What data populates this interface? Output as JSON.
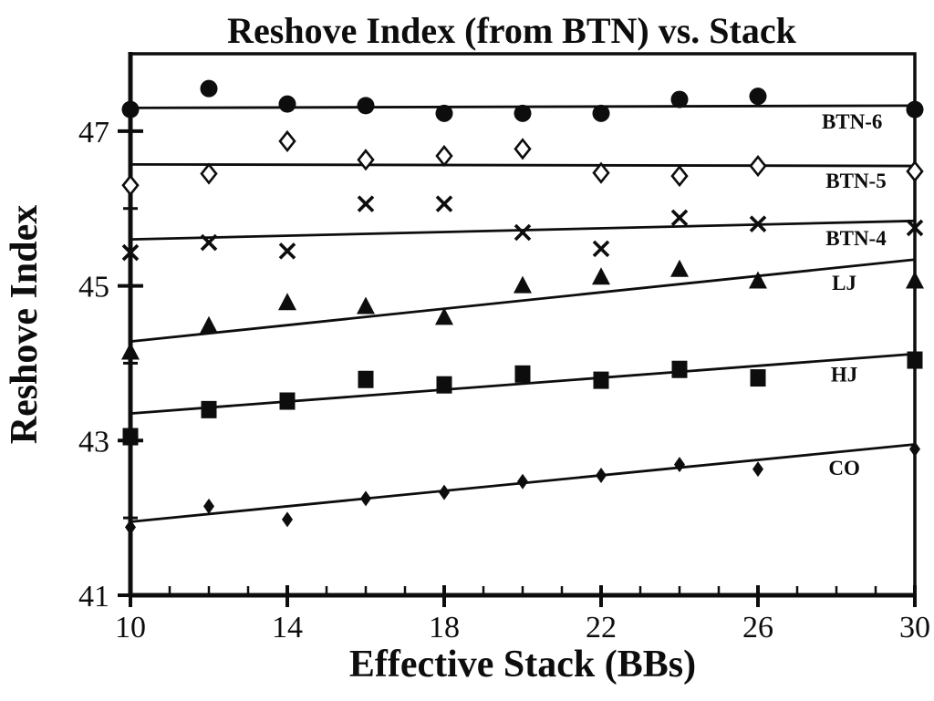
{
  "page": {
    "background_color": "#ffffff",
    "ink_color": "#0d0d0d"
  },
  "chart_data": {
    "type": "scatter",
    "title": "Reshove Index (from BTN) vs. Stack",
    "xlabel": "Effective Stack (BBs)",
    "ylabel": "Reshove Index",
    "xlim": [
      10,
      30
    ],
    "ylim": [
      41,
      48
    ],
    "grid": false,
    "legend_position": "inline-right-of-lines",
    "x_major_ticks": [
      10,
      14,
      18,
      22,
      26,
      30
    ],
    "x_minor_tick_step": 1,
    "y_major_ticks": [
      41,
      43,
      45,
      47
    ],
    "y_minor_ticks": [
      42,
      44,
      46
    ],
    "x": [
      10,
      12,
      14,
      16,
      18,
      20,
      22,
      24,
      26,
      30
    ],
    "series": [
      {
        "name": "BTN-6",
        "marker": "filled-circle",
        "values": [
          47.28,
          47.55,
          47.35,
          47.33,
          47.23,
          47.23,
          47.23,
          47.41,
          47.45,
          47.28
        ],
        "trend_line_y": [
          47.3,
          47.33
        ],
        "label_at": [
          28.4,
          47.13
        ]
      },
      {
        "name": "BTN-5",
        "marker": "open-diamond",
        "values": [
          46.3,
          46.45,
          46.87,
          46.63,
          46.68,
          46.77,
          46.46,
          46.42,
          46.55,
          46.48
        ],
        "trend_line_y": [
          46.57,
          46.55
        ],
        "label_at": [
          28.5,
          46.36
        ]
      },
      {
        "name": "BTN-4",
        "marker": "x-cross",
        "values": [
          45.43,
          45.56,
          45.45,
          46.06,
          46.06,
          45.69,
          45.48,
          45.88,
          45.8,
          45.75
        ],
        "trend_line_y": [
          45.6,
          45.84
        ],
        "label_at": [
          28.5,
          45.62
        ]
      },
      {
        "name": "LJ",
        "marker": "filled-triangle",
        "values": [
          44.14,
          44.48,
          44.78,
          44.73,
          44.59,
          45.0,
          45.11,
          45.21,
          45.06,
          45.06
        ],
        "trend_line_y": [
          44.28,
          45.34
        ],
        "label_at": [
          28.2,
          45.04
        ]
      },
      {
        "name": "HJ",
        "marker": "filled-square",
        "values": [
          43.05,
          43.4,
          43.51,
          43.79,
          43.72,
          43.86,
          43.78,
          43.92,
          43.81,
          44.04
        ],
        "trend_line_y": [
          43.35,
          44.12
        ],
        "label_at": [
          28.2,
          43.86
        ]
      },
      {
        "name": "CO",
        "marker": "filled-diamond-small",
        "values": [
          41.88,
          42.15,
          41.98,
          42.25,
          42.33,
          42.47,
          42.55,
          42.69,
          42.63,
          42.89
        ],
        "trend_line_y": [
          41.95,
          42.95
        ],
        "label_at": [
          28.2,
          42.65
        ]
      }
    ]
  }
}
